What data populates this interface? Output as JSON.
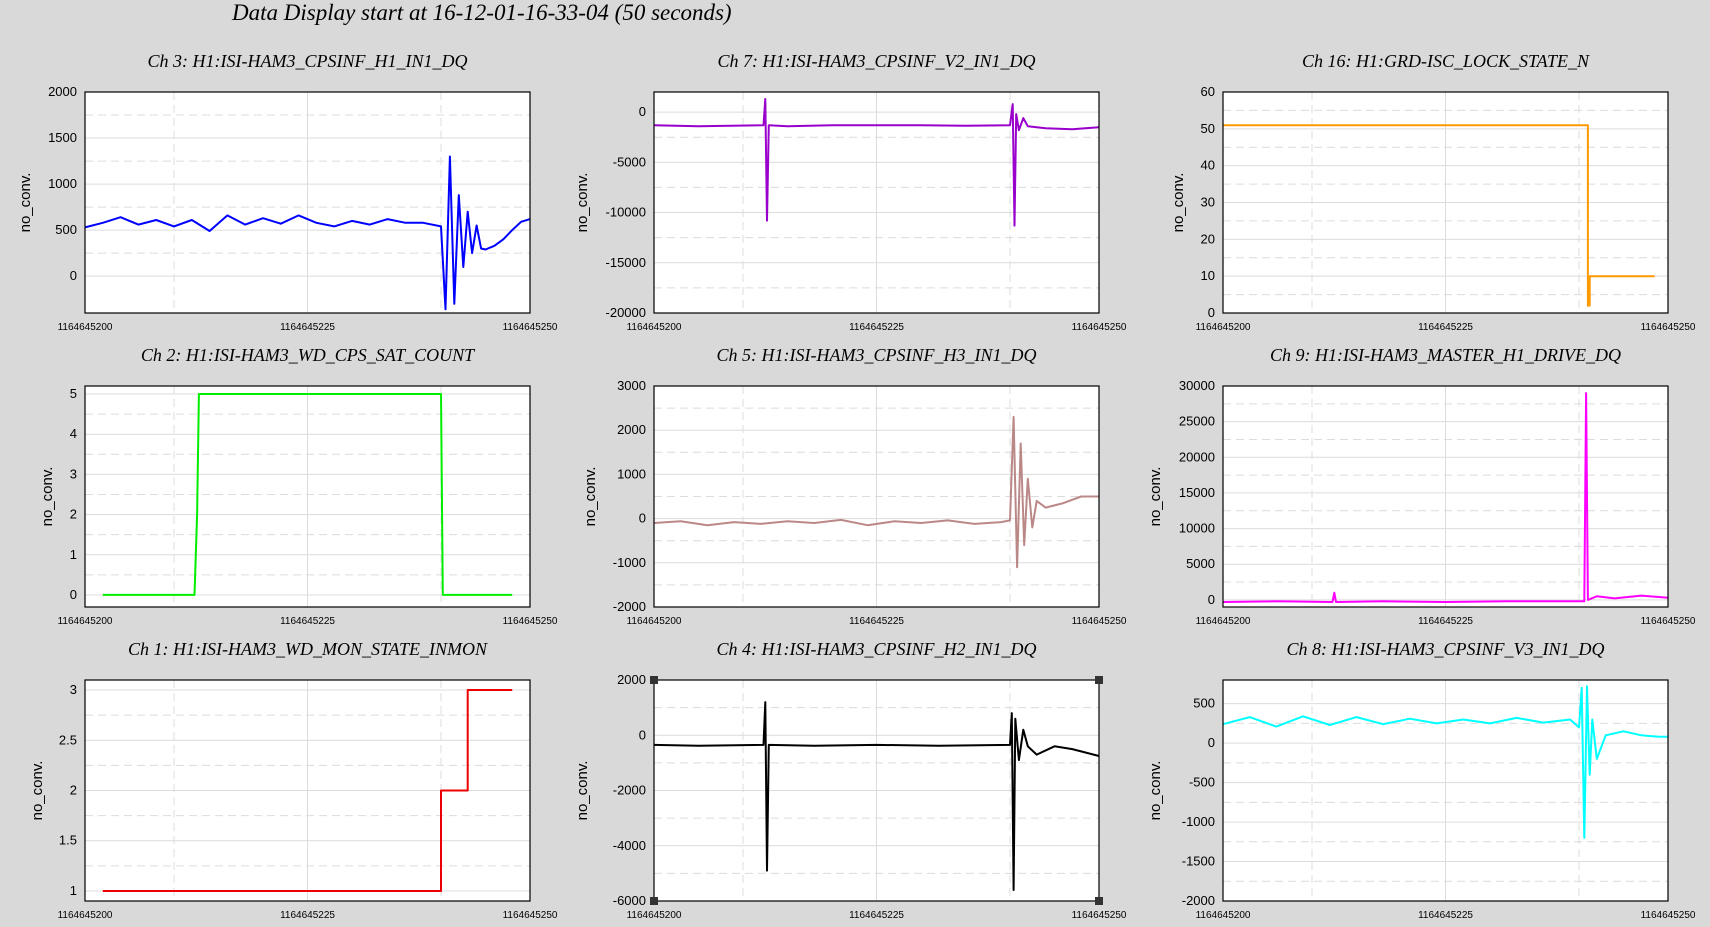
{
  "title": "Data Display start at 16-12-01-16-33-04 (50 seconds)",
  "chart_data": [
    {
      "type": "line",
      "title": "Ch 3: H1:ISI-HAM3_CPSINF_H1_IN1_DQ",
      "ylabel": "no_conv.",
      "color": "#0000ff",
      "xlim": [
        1164645200,
        1164645250
      ],
      "xticks": [
        "1164645200",
        "1164645225",
        "1164645250"
      ],
      "ylim": [
        -400,
        2000
      ],
      "yticks": [
        0,
        500,
        1000,
        1500,
        2000
      ],
      "series": [
        {
          "x": [
            1164645200,
            1164645202,
            1164645204,
            1164645206,
            1164645208,
            1164645210,
            1164645212,
            1164645214,
            1164645216,
            1164645218,
            1164645220,
            1164645222,
            1164645224,
            1164645226,
            1164645228,
            1164645230,
            1164645232,
            1164645234,
            1164645236,
            1164645238,
            1164645240,
            1164645240.5,
            1164645241,
            1164645241.5,
            1164645242,
            1164645242.5,
            1164645243,
            1164645243.5,
            1164645244,
            1164645244.5,
            1164645245,
            1164645246,
            1164645247,
            1164645248,
            1164645249,
            1164645250
          ],
          "y": [
            530,
            580,
            640,
            560,
            610,
            540,
            610,
            490,
            660,
            560,
            630,
            570,
            660,
            580,
            540,
            600,
            560,
            620,
            580,
            580,
            540,
            -360,
            1300,
            -300,
            880,
            100,
            700,
            250,
            550,
            300,
            290,
            330,
            400,
            500,
            590,
            620
          ]
        }
      ]
    },
    {
      "type": "line",
      "title": "Ch 7: H1:ISI-HAM3_CPSINF_V2_IN1_DQ",
      "ylabel": "no_conv.",
      "color": "#9900cc",
      "xlim": [
        1164645200,
        1164645250
      ],
      "xticks": [
        "1164645200",
        "1164645225",
        "1164645250"
      ],
      "ylim": [
        -20000,
        2000
      ],
      "yticks": [
        0,
        -5000,
        -10000,
        -15000,
        -20000
      ],
      "series": [
        {
          "x": [
            1164645200,
            1164645205,
            1164645212.3,
            1164645212.5,
            1164645212.7,
            1164645212.9,
            1164645215,
            1164645220,
            1164645225,
            1164645230,
            1164645235,
            1164645240,
            1164645240.3,
            1164645240.5,
            1164645240.7,
            1164645241,
            1164645241.5,
            1164645242,
            1164645244,
            1164645247,
            1164645250
          ],
          "y": [
            -1300,
            -1400,
            -1300,
            1300,
            -10800,
            -1300,
            -1400,
            -1300,
            -1300,
            -1300,
            -1350,
            -1300,
            800,
            -11300,
            -200,
            -1800,
            -600,
            -1400,
            -1600,
            -1700,
            -1500
          ]
        }
      ]
    },
    {
      "type": "line",
      "title": "Ch 16: H1:GRD-ISC_LOCK_STATE_N",
      "ylabel": "no_conv.",
      "color": "#ff9900",
      "xlim": [
        1164645200,
        1164645250
      ],
      "xticks": [
        "1164645200",
        "1164645225",
        "1164645250"
      ],
      "ylim": [
        0,
        60
      ],
      "yticks": [
        0,
        10,
        20,
        30,
        40,
        50,
        60
      ],
      "series": [
        {
          "x": [
            1164645200,
            1164645241,
            1164645241,
            1164645241.2,
            1164645241.2,
            1164645248.5
          ],
          "y": [
            51,
            51,
            2,
            2,
            10,
            10
          ]
        }
      ]
    },
    {
      "type": "line",
      "title": "Ch 2: H1:ISI-HAM3_WD_CPS_SAT_COUNT",
      "ylabel": "no_conv.",
      "color": "#00ee00",
      "xlim": [
        1164645200,
        1164645250
      ],
      "xticks": [
        "1164645200",
        "1164645225",
        "1164645250"
      ],
      "ylim": [
        -0.3,
        5.2
      ],
      "yticks": [
        0,
        1,
        2,
        3,
        4,
        5
      ],
      "series": [
        {
          "x": [
            1164645202,
            1164645212.3,
            1164645212.6,
            1164645212.8,
            1164645240,
            1164645240.2,
            1164645248
          ],
          "y": [
            0,
            0,
            2,
            5,
            5,
            0,
            0
          ]
        }
      ]
    },
    {
      "type": "line",
      "title": "Ch 5: H1:ISI-HAM3_CPSINF_H3_IN1_DQ",
      "ylabel": "no_conv.",
      "color": "#bb8888",
      "xlim": [
        1164645200,
        1164645250
      ],
      "xticks": [
        "1164645200",
        "1164645225",
        "1164645250"
      ],
      "ylim": [
        -2000,
        3000
      ],
      "yticks": [
        3000,
        2000,
        1000,
        0,
        -1000,
        -2000
      ],
      "series": [
        {
          "x": [
            1164645200,
            1164645203,
            1164645206,
            1164645209,
            1164645212,
            1164645215,
            1164645218,
            1164645221,
            1164645224,
            1164645227,
            1164645230,
            1164645233,
            1164645236,
            1164645239,
            1164645240,
            1164645240.4,
            1164645240.8,
            1164645241.2,
            1164645241.6,
            1164645242,
            1164645242.5,
            1164645243,
            1164645244,
            1164645246,
            1164645248,
            1164645250
          ],
          "y": [
            -100,
            -60,
            -150,
            -80,
            -120,
            -60,
            -100,
            -30,
            -150,
            -60,
            -100,
            -40,
            -120,
            -80,
            -40,
            2300,
            -1100,
            1700,
            -600,
            900,
            -200,
            400,
            250,
            350,
            500,
            500
          ]
        }
      ]
    },
    {
      "type": "line",
      "title": "Ch 9: H1:ISI-HAM3_MASTER_H1_DRIVE_DQ",
      "ylabel": "no_conv.",
      "color": "#ff00ff",
      "xlim": [
        1164645200,
        1164645250
      ],
      "xticks": [
        "1164645200",
        "1164645225",
        "1164645250"
      ],
      "ylim": [
        -1000,
        30000
      ],
      "yticks": [
        0,
        5000,
        10000,
        15000,
        20000,
        25000,
        30000
      ],
      "series": [
        {
          "x": [
            1164645200,
            1164645206,
            1164645212.3,
            1164645212.5,
            1164645212.7,
            1164645218,
            1164645225,
            1164645232,
            1164645240,
            1164645240.6,
            1164645240.8,
            1164645241,
            1164645242,
            1164645244,
            1164645247,
            1164645250
          ],
          "y": [
            -300,
            -200,
            -300,
            1000,
            -300,
            -200,
            -300,
            -200,
            -200,
            -200,
            29000,
            0,
            500,
            200,
            600,
            300
          ]
        }
      ]
    },
    {
      "type": "line",
      "title": "Ch 1: H1:ISI-HAM3_WD_MON_STATE_INMON",
      "ylabel": "no_conv.",
      "color": "#ee0000",
      "xlim": [
        1164645200,
        1164645250
      ],
      "xticks": [
        "1164645200",
        "1164645225",
        "1164645250"
      ],
      "ylim": [
        0.9,
        3.1
      ],
      "yticks": [
        1,
        1.5,
        2,
        2.5,
        3
      ],
      "series": [
        {
          "x": [
            1164645202,
            1164645240,
            1164645240,
            1164645243,
            1164645243,
            1164645248
          ],
          "y": [
            1,
            1,
            2,
            2,
            3,
            3
          ]
        }
      ]
    },
    {
      "type": "line",
      "title": "Ch 4: H1:ISI-HAM3_CPSINF_H2_IN1_DQ",
      "ylabel": "no_conv.",
      "color": "#000000",
      "xlim": [
        1164645200,
        1164645250
      ],
      "xticks": [
        "1164645200",
        "1164645225",
        "1164645250"
      ],
      "ylim": [
        -6000,
        2000
      ],
      "yticks": [
        2000,
        0,
        -2000,
        -4000,
        -6000
      ],
      "series": [
        {
          "x": [
            1164645200,
            1164645205,
            1164645212.3,
            1164645212.5,
            1164645212.7,
            1164645212.9,
            1164645218,
            1164645225,
            1164645232,
            1164645240,
            1164645240.2,
            1164645240.4,
            1164645240.6,
            1164645241,
            1164645241.5,
            1164645242,
            1164645243,
            1164645245,
            1164645247,
            1164645250
          ],
          "y": [
            -350,
            -380,
            -350,
            1200,
            -4900,
            -350,
            -380,
            -350,
            -380,
            -350,
            800,
            -5600,
            600,
            -900,
            200,
            -400,
            -700,
            -400,
            -500,
            -750
          ]
        }
      ]
    },
    {
      "type": "line",
      "title": "Ch 8: H1:ISI-HAM3_CPSINF_V3_IN1_DQ",
      "ylabel": "no_conv.",
      "color": "#00ffff",
      "xlim": [
        1164645200,
        1164645250
      ],
      "xticks": [
        "1164645200",
        "1164645225",
        "1164645250"
      ],
      "ylim": [
        -2000,
        800
      ],
      "yticks": [
        500,
        0,
        -500,
        -1000,
        -1500,
        -2000
      ],
      "series": [
        {
          "x": [
            1164645200,
            1164645203,
            1164645206,
            1164645209,
            1164645212,
            1164645215,
            1164645218,
            1164645221,
            1164645224,
            1164645227,
            1164645230,
            1164645233,
            1164645236,
            1164645239,
            1164645240,
            1164645240.3,
            1164645240.6,
            1164645240.9,
            1164645241.2,
            1164645241.5,
            1164645242,
            1164645243,
            1164645245,
            1164645247,
            1164645249,
            1164645250
          ],
          "y": [
            240,
            330,
            210,
            340,
            230,
            330,
            240,
            310,
            250,
            300,
            250,
            320,
            260,
            300,
            200,
            700,
            -1200,
            720,
            -400,
            300,
            -200,
            100,
            150,
            100,
            80,
            80
          ]
        }
      ]
    }
  ]
}
